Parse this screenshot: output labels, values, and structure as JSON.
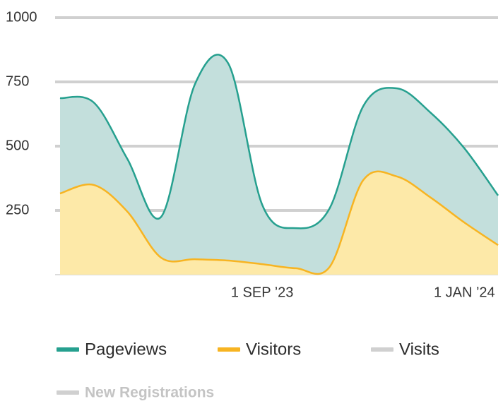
{
  "chart_data": {
    "type": "area",
    "categories": [
      null,
      null,
      null,
      null,
      null,
      null,
      "1 SEP ’23",
      null,
      null,
      null,
      null,
      null,
      "1 JAN ’24",
      null
    ],
    "series": [
      {
        "name": "Pageviews",
        "color": "#26a08f",
        "fill": "#c3dfdc",
        "values": [
          687,
          670,
          450,
          225,
          740,
          820,
          272,
          181,
          258,
          656,
          725,
          630,
          492,
          308
        ]
      },
      {
        "name": "Visitors",
        "color": "#f7b422",
        "fill": "#fde9a8",
        "values": [
          316,
          349,
          245,
          66,
          60,
          55,
          41,
          25,
          30,
          368,
          382,
          300,
          203,
          115
        ]
      },
      {
        "name": "Visits",
        "color": "#d0d0d0",
        "values": [
          null,
          null,
          null,
          null,
          null,
          null,
          null,
          null,
          null,
          null,
          null,
          null,
          null,
          null
        ]
      },
      {
        "name": "New Registrations",
        "color": "#d0d0d0",
        "hidden": true,
        "values": [
          null,
          null,
          null,
          null,
          null,
          null,
          null,
          null,
          null,
          null,
          null,
          null,
          null,
          null
        ]
      }
    ],
    "ylim": [
      0,
      1000
    ],
    "yticks": [
      250,
      500,
      750,
      1000
    ],
    "grid": true
  }
}
